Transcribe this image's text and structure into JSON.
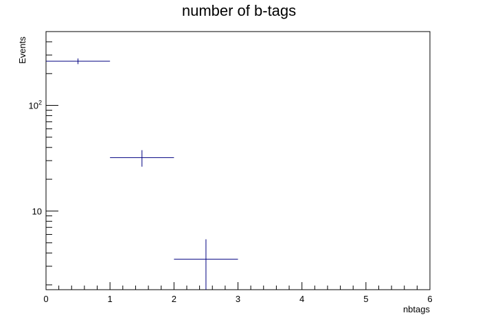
{
  "chart_data": {
    "type": "scatter",
    "title": "number of b-tags",
    "xlabel": "nbtags",
    "ylabel": "Events",
    "xlim": [
      0,
      6
    ],
    "ylim": [
      1.8,
      500
    ],
    "y_scale": "log",
    "grid": false,
    "series_color": "#000080",
    "x_ticks": [
      0,
      1,
      2,
      3,
      4,
      5,
      6
    ],
    "y_tick_labels": [
      {
        "value": 10,
        "label": "10"
      },
      {
        "value": 100,
        "label": "10",
        "exponent": "2"
      }
    ],
    "bins": [
      {
        "x_low": 0,
        "x_high": 1,
        "y": 262,
        "err": 16
      },
      {
        "x_low": 1,
        "x_high": 2,
        "y": 32,
        "err": 5.7
      },
      {
        "x_low": 2,
        "x_high": 3,
        "y": 3.5,
        "err": 1.9
      }
    ]
  }
}
